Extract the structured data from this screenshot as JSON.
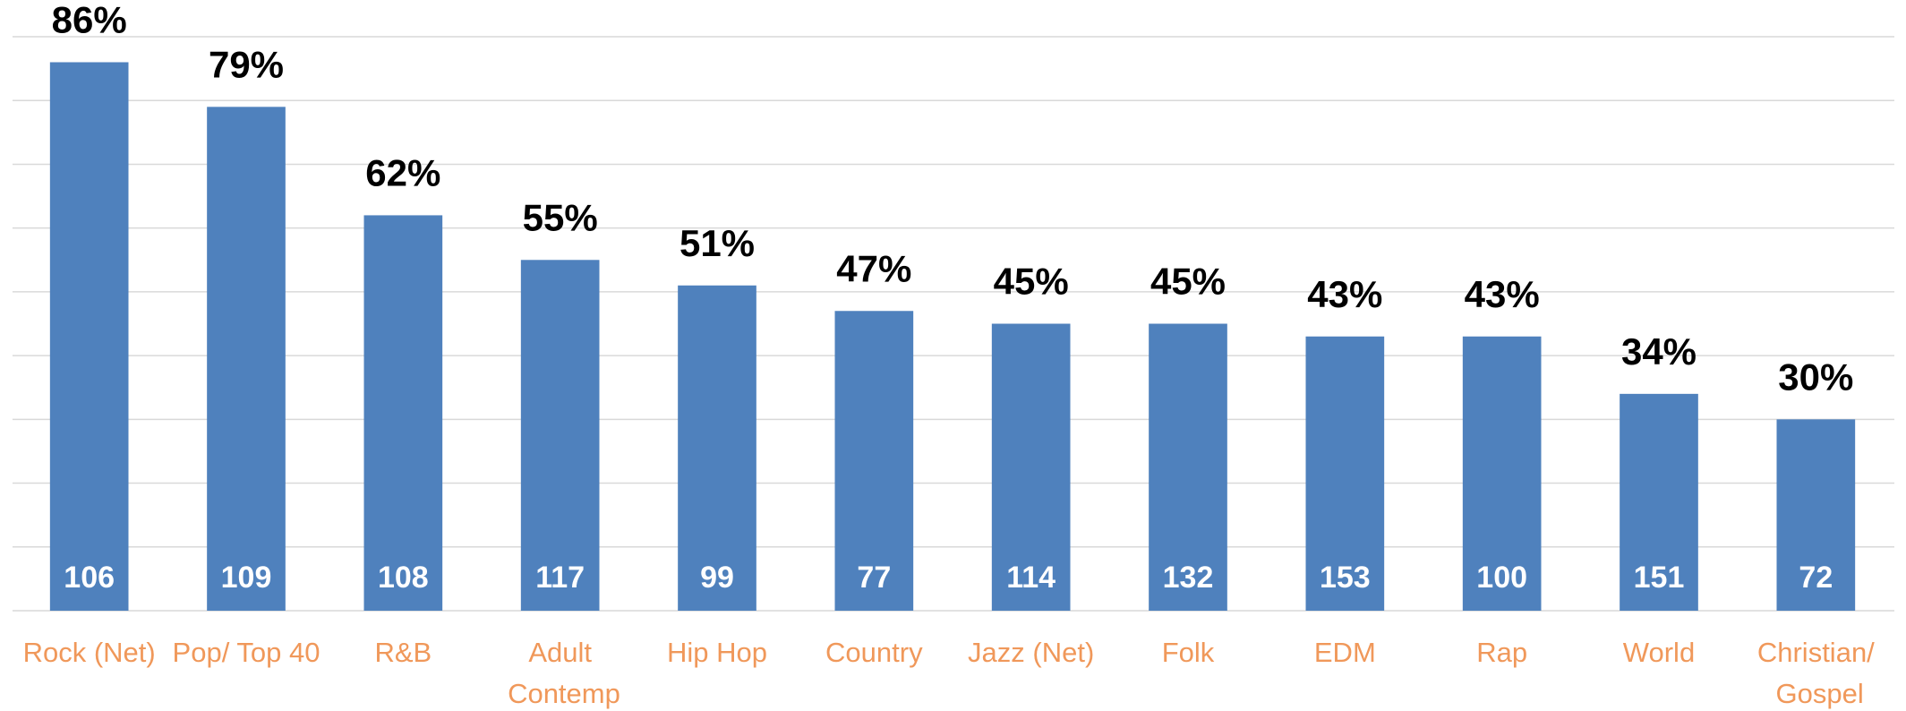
{
  "chart_data": {
    "type": "bar",
    "categories": [
      "Rock (Net)",
      "Pop/ Top 40",
      "R&B",
      "Adult Contemp",
      "Hip Hop",
      "Country",
      "Jazz (Net)",
      "Folk",
      "EDM",
      "Rap",
      "World",
      "Christian/ Gospel"
    ],
    "values": [
      86,
      79,
      62,
      55,
      51,
      47,
      45,
      45,
      43,
      43,
      34,
      30
    ],
    "value_labels": [
      "86%",
      "79%",
      "62%",
      "55%",
      "51%",
      "47%",
      "45%",
      "45%",
      "43%",
      "43%",
      "34%",
      "30%"
    ],
    "base_labels": [
      106,
      109,
      108,
      117,
      99,
      77,
      114,
      132,
      153,
      100,
      151,
      72
    ],
    "color": "#4f81bd",
    "ylim": [
      0,
      90
    ],
    "yticks": [
      0,
      10,
      20,
      30,
      40,
      50,
      60,
      70,
      80,
      90
    ],
    "grid": true
  }
}
